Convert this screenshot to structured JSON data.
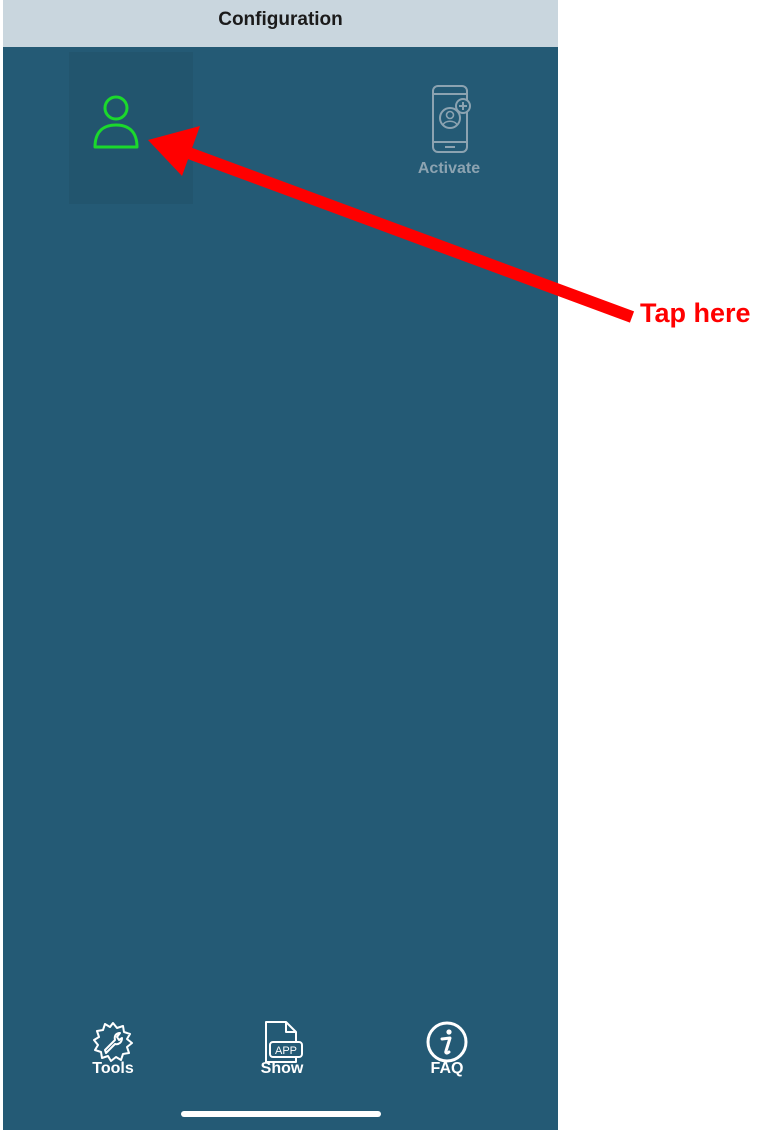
{
  "header": {
    "title": "Configuration"
  },
  "grid": {
    "profile": {
      "icon": "user-profile-icon",
      "color": "#1bd92c"
    },
    "activate": {
      "label": "Activate",
      "icon": "phone-add-user-icon",
      "color": "#8ca3b1"
    }
  },
  "tabbar": {
    "items": [
      {
        "label": "Tools",
        "icon": "gear-wrench-icon"
      },
      {
        "label": "Show",
        "icon": "app-document-icon",
        "icon_text": "APP"
      },
      {
        "label": "FAQ",
        "icon": "info-icon"
      }
    ]
  },
  "annotation": {
    "text": "Tap here",
    "color": "#ff0000"
  },
  "colors": {
    "background": "#245a75",
    "header": "#c9d6de",
    "accent_green": "#1bd92c",
    "annotation_red": "#ff0000"
  }
}
